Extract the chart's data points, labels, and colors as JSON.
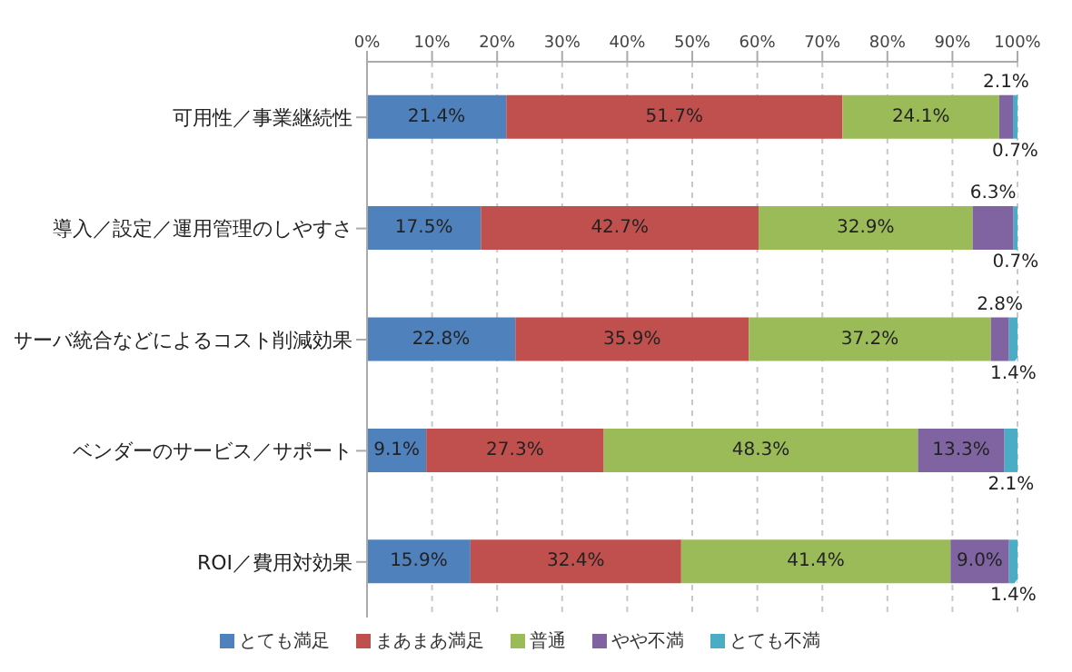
{
  "chart_data": {
    "type": "bar",
    "orientation": "horizontal",
    "stacked": true,
    "categories": [
      "可用性／事業継続性",
      "導入／設定／運用管理のしやすさ",
      "サーバ統合などによるコスト削減効果",
      "ベンダーのサービス／サポート",
      "ROI／費用対効果"
    ],
    "series": [
      {
        "name": "とても満足",
        "color": "#4f81bd",
        "values": [
          21.4,
          17.5,
          22.8,
          9.1,
          15.9
        ],
        "value_labels": [
          "21.4%",
          "17.5%",
          "22.8%",
          "9.1%",
          "15.9%"
        ]
      },
      {
        "name": "まあまあ満足",
        "color": "#c0504d",
        "values": [
          51.7,
          42.7,
          35.9,
          27.3,
          32.4
        ],
        "value_labels": [
          "51.7%",
          "42.7%",
          "35.9%",
          "27.3%",
          "32.4%"
        ]
      },
      {
        "name": "普通",
        "color": "#9bbb59",
        "values": [
          24.1,
          32.9,
          37.2,
          48.3,
          41.4
        ],
        "value_labels": [
          "24.1%",
          "32.9%",
          "37.2%",
          "48.3%",
          "41.4%"
        ]
      },
      {
        "name": "やや不満",
        "color": "#8064a2",
        "values": [
          2.1,
          6.3,
          2.8,
          13.3,
          9.0
        ],
        "value_labels": [
          "2.1%",
          "6.3%",
          "2.8%",
          "13.3%",
          "9.0%"
        ]
      },
      {
        "name": "とても不満",
        "color": "#4bacc6",
        "values": [
          0.7,
          0.7,
          1.4,
          2.1,
          1.4
        ],
        "value_labels": [
          "0.7%",
          "0.7%",
          "1.4%",
          "2.1%",
          "1.4%"
        ]
      }
    ],
    "xlim": [
      0,
      100
    ],
    "xticks": [
      {
        "value": 0,
        "label": "0%"
      },
      {
        "value": 10,
        "label": "10%"
      },
      {
        "value": 20,
        "label": "20%"
      },
      {
        "value": 30,
        "label": "30%"
      },
      {
        "value": 40,
        "label": "40%"
      },
      {
        "value": 50,
        "label": "50%"
      },
      {
        "value": 60,
        "label": "60%"
      },
      {
        "value": 70,
        "label": "70%"
      },
      {
        "value": 80,
        "label": "80%"
      },
      {
        "value": 90,
        "label": "90%"
      },
      {
        "value": 100,
        "label": "100%"
      }
    ],
    "grid": "x",
    "legend": "bottom"
  }
}
